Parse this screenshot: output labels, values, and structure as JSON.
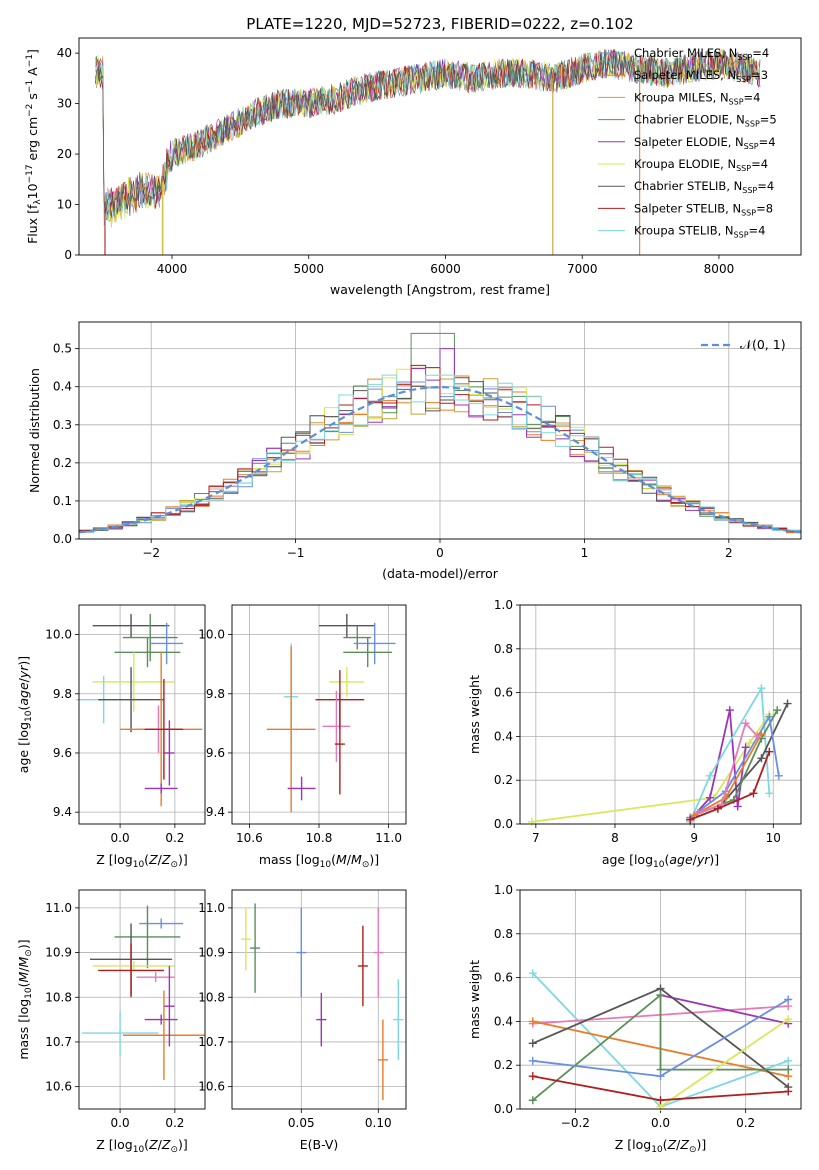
{
  "figure": {
    "title": "PLATE=1220, MJD=52723, FIBERID=0222, z=0.102"
  },
  "colors": {
    "Chabrier MILES": "#6a8fdf",
    "Salpeter MILES": "#e87d2a",
    "Kroupa MILES": "#c8a034",
    "Chabrier ELODIE": "#5a8f5a",
    "Salpeter ELODIE": "#9b35b5",
    "Kroupa ELODIE": "#d8e85a",
    "Chabrier STELIB": "#555555",
    "Salpeter STELIB": "#b01e1e",
    "Kroupa STELIB": "#7dd8e0",
    "pink": "#e87ab8",
    "normal": "#5b8fd8"
  },
  "chart_data": [
    {
      "id": "spectrum",
      "type": "line",
      "xlabel": "wavelength [Angstrom, rest frame]",
      "ylabel": "Flux [fλ10⁻¹⁷ erg cm⁻² s⁻¹ A⁻¹]",
      "xlim": [
        3320,
        8600
      ],
      "ylim": [
        0,
        43
      ],
      "xticks": [
        4000,
        5000,
        6000,
        7000,
        8000
      ],
      "yticks": [
        0,
        10,
        20,
        30,
        40
      ],
      "legend_position": "top-right",
      "legend": [
        "Chabrier MILES, N_SSP=4",
        "Salpeter MILES, N_SSP=3",
        "Kroupa MILES, N_SSP=4",
        "Chabrier ELODIE, N_SSP=5",
        "Salpeter ELODIE, N_SSP=4",
        "Kroupa ELODIE, N_SSP=4",
        "Chabrier STELIB, N_SSP=4",
        "Salpeter STELIB, N_SSP=8",
        "Kroupa STELIB, N_SSP=4"
      ],
      "legend_labels": [
        {
          "base": "Chabrier MILES, N",
          "sub": "SSP",
          "tail": "=4"
        },
        {
          "base": "Salpeter MILES, N",
          "sub": "SSP",
          "tail": "=3"
        },
        {
          "base": "Kroupa MILES, N",
          "sub": "SSP",
          "tail": "=4"
        },
        {
          "base": "Chabrier ELODIE, N",
          "sub": "SSP",
          "tail": "=5"
        },
        {
          "base": "Salpeter ELODIE, N",
          "sub": "SSP",
          "tail": "=4"
        },
        {
          "base": "Kroupa ELODIE, N",
          "sub": "SSP",
          "tail": "=4"
        },
        {
          "base": "Chabrier STELIB, N",
          "sub": "SSP",
          "tail": "=4"
        },
        {
          "base": "Salpeter STELIB, N",
          "sub": "SSP",
          "tail": "=8"
        },
        {
          "base": "Kroupa STELIB, N",
          "sub": "SSP",
          "tail": "=4"
        }
      ],
      "series_colors": [
        "#6a8fdf",
        "#e87d2a",
        "#c8a034",
        "#5a8f5a",
        "#9b35b5",
        "#d8e85a",
        "#555555",
        "#b01e1e",
        "#7dd8e0"
      ],
      "continuum": [
        [
          3500,
          9
        ],
        [
          3600,
          10
        ],
        [
          3700,
          12
        ],
        [
          3800,
          13
        ],
        [
          3900,
          12
        ],
        [
          4000,
          20
        ],
        [
          4200,
          22
        ],
        [
          4400,
          25
        ],
        [
          4600,
          28
        ],
        [
          4800,
          30
        ],
        [
          5000,
          30
        ],
        [
          5200,
          31
        ],
        [
          5400,
          33
        ],
        [
          5600,
          34
        ],
        [
          5800,
          35
        ],
        [
          6000,
          36
        ],
        [
          6200,
          35
        ],
        [
          6400,
          36
        ],
        [
          6600,
          36
        ],
        [
          6800,
          35
        ],
        [
          7000,
          37
        ],
        [
          7200,
          38
        ],
        [
          7400,
          37
        ],
        [
          7600,
          36
        ],
        [
          7800,
          37
        ],
        [
          8000,
          38
        ],
        [
          8200,
          37
        ],
        [
          8300,
          36
        ]
      ],
      "spikes": [
        {
          "x": 3510,
          "color": "#b01e1e",
          "to": 0
        },
        {
          "x": 3930,
          "color": "#c8a034",
          "to": 0
        },
        {
          "x": 3935,
          "color": "#d8e85a",
          "to": 0
        },
        {
          "x": 6785,
          "color": "#c8a034",
          "to": 0
        },
        {
          "x": 7420,
          "color": "#e87d2a",
          "to": 0
        }
      ]
    },
    {
      "id": "residuals",
      "type": "histogram",
      "xlabel": "(data-model)/error",
      "ylabel": "Normed distribution",
      "xlim": [
        -2.5,
        2.5
      ],
      "ylim": [
        0,
        0.57
      ],
      "xticks": [
        -2,
        -1,
        0,
        1,
        2
      ],
      "yticks": [
        0.0,
        0.1,
        0.2,
        0.3,
        0.4,
        0.5
      ],
      "bin_width": 0.1,
      "legend": [
        "N(0, 1)"
      ],
      "legend_position": "top-right",
      "peak_values": [
        0.54,
        0.5,
        0.46,
        0.45,
        0.42
      ]
    },
    {
      "id": "age-vs-Z",
      "type": "errorbar",
      "xlabel": "Z [log10(Z/Z⊙)]",
      "ylabel": "age [log10(age/yr)]",
      "xlim": [
        -0.15,
        0.31
      ],
      "ylim": [
        9.36,
        10.1
      ],
      "xticks": [
        0.0,
        0.2
      ],
      "yticks": [
        9.4,
        9.6,
        9.8,
        10.0
      ],
      "points": [
        {
          "x": 0.04,
          "y": 10.03,
          "xerr": 0.14,
          "yerr": 0.04,
          "color": "#555555"
        },
        {
          "x": 0.11,
          "y": 9.99,
          "xerr": 0.1,
          "yerr": 0.08,
          "color": "#5a8f5a"
        },
        {
          "x": 0.17,
          "y": 9.97,
          "xerr": 0.06,
          "yerr": 0.07,
          "color": "#6a8fdf"
        },
        {
          "x": 0.1,
          "y": 9.94,
          "xerr": 0.12,
          "yerr": 0.05,
          "color": "#5a8f5a"
        },
        {
          "x": 0.05,
          "y": 9.84,
          "xerr": 0.15,
          "yerr": 0.1,
          "color": "#d8e85a"
        },
        {
          "x": -0.06,
          "y": 9.78,
          "xerr": 0.1,
          "yerr": 0.08,
          "color": "#7dd8e0"
        },
        {
          "x": 0.04,
          "y": 9.78,
          "xerr": 0.12,
          "yerr": 0.11,
          "color": "#555555"
        },
        {
          "x": 0.14,
          "y": 9.68,
          "xerr": 0.08,
          "yerr": 0.08,
          "color": "#e87ab8"
        },
        {
          "x": 0.15,
          "y": 9.68,
          "xerr": 0.15,
          "yerr": 0.26,
          "color": "#e87d2a"
        },
        {
          "x": 0.16,
          "y": 9.68,
          "xerr": 0.07,
          "yerr": 0.17,
          "color": "#b01e1e"
        },
        {
          "x": 0.18,
          "y": 9.6,
          "xerr": 0.0,
          "yerr": 0.11,
          "color": "#9b35b5"
        },
        {
          "x": 0.15,
          "y": 9.48,
          "xerr": 0.06,
          "yerr": 0.0,
          "color": "#9b35b5"
        }
      ]
    },
    {
      "id": "age-vs-mass",
      "type": "errorbar",
      "xlabel": "mass [log10(M/M⊙)]",
      "ylabel": "",
      "xlim": [
        10.55,
        11.05
      ],
      "ylim": [
        9.36,
        10.1
      ],
      "xticks": [
        10.6,
        10.8,
        11.0
      ],
      "yticks": [
        9.4,
        9.6,
        9.8,
        10.0
      ],
      "points": [
        {
          "x": 10.88,
          "y": 10.03,
          "xerr": 0.08,
          "yerr": 0.04,
          "color": "#555555"
        },
        {
          "x": 10.91,
          "y": 9.99,
          "xerr": 0.04,
          "yerr": 0.04,
          "color": "#5a8f5a"
        },
        {
          "x": 10.96,
          "y": 9.97,
          "xerr": 0.06,
          "yerr": 0.07,
          "color": "#6a8fdf"
        },
        {
          "x": 10.94,
          "y": 9.94,
          "xerr": 0.07,
          "yerr": 0.05,
          "color": "#5a8f5a"
        },
        {
          "x": 10.88,
          "y": 9.84,
          "xerr": 0.05,
          "yerr": 0.05,
          "color": "#d8e85a"
        },
        {
          "x": 10.72,
          "y": 9.79,
          "xerr": 0.02,
          "yerr": 0.18,
          "color": "#7dd8e0"
        },
        {
          "x": 10.86,
          "y": 9.78,
          "xerr": 0.07,
          "yerr": 0.1,
          "color": "#b01e1e"
        },
        {
          "x": 10.85,
          "y": 9.69,
          "xerr": 0.04,
          "yerr": 0.12,
          "color": "#e87ab8"
        },
        {
          "x": 10.72,
          "y": 9.68,
          "xerr": 0.07,
          "yerr": 0.28,
          "color": "#e87d2a"
        },
        {
          "x": 10.86,
          "y": 9.63,
          "xerr": 0.0,
          "yerr": 0.17,
          "color": "#b01e1e"
        },
        {
          "x": 10.75,
          "y": 9.48,
          "xerr": 0.04,
          "yerr": 0.04,
          "color": "#9b35b5"
        }
      ]
    },
    {
      "id": "weight-vs-age",
      "type": "line",
      "xlabel": "age [log10(age/yr)]",
      "ylabel": "mass weight",
      "xlim": [
        6.8,
        10.35
      ],
      "ylim": [
        0,
        1
      ],
      "xticks": [
        7,
        8,
        9,
        10
      ],
      "yticks": [
        0.0,
        0.2,
        0.4,
        0.6,
        0.8,
        1.0
      ],
      "series": [
        {
          "color": "#d8e85a",
          "points": [
            [
              6.95,
              0.01
            ],
            [
              9.25,
              0.12
            ],
            [
              9.7,
              0.37
            ],
            [
              9.95,
              0.5
            ]
          ]
        },
        {
          "color": "#9b35b5",
          "points": [
            [
              8.95,
              0.02
            ],
            [
              9.2,
              0.12
            ],
            [
              9.45,
              0.52
            ],
            [
              9.55,
              0.08
            ],
            [
              9.65,
              0.35
            ]
          ]
        },
        {
          "color": "#7dd8e0",
          "points": [
            [
              8.95,
              0.01
            ],
            [
              9.2,
              0.22
            ],
            [
              9.85,
              0.62
            ],
            [
              9.95,
              0.14
            ]
          ]
        },
        {
          "color": "#555555",
          "points": [
            [
              8.95,
              0.02
            ],
            [
              9.3,
              0.07
            ],
            [
              9.85,
              0.3
            ],
            [
              10.18,
              0.55
            ]
          ]
        },
        {
          "color": "#5a8f5a",
          "points": [
            [
              9.0,
              0.04
            ],
            [
              9.5,
              0.11
            ],
            [
              9.85,
              0.39
            ],
            [
              10.05,
              0.52
            ]
          ]
        },
        {
          "color": "#6a8fdf",
          "points": [
            [
              8.95,
              0.03
            ],
            [
              9.4,
              0.15
            ],
            [
              9.95,
              0.49
            ],
            [
              10.07,
              0.22
            ]
          ]
        },
        {
          "color": "#e87d2a",
          "points": [
            [
              9.0,
              0.04
            ],
            [
              9.4,
              0.12
            ],
            [
              9.85,
              0.41
            ]
          ]
        },
        {
          "color": "#e87ab8",
          "points": [
            [
              9.05,
              0.05
            ],
            [
              9.35,
              0.09
            ],
            [
              9.65,
              0.46
            ],
            [
              9.8,
              0.4
            ]
          ]
        },
        {
          "color": "#b01e1e",
          "points": [
            [
              8.95,
              0.02
            ],
            [
              9.3,
              0.07
            ],
            [
              9.75,
              0.14
            ],
            [
              9.95,
              0.33
            ]
          ]
        }
      ]
    },
    {
      "id": "mass-vs-Z",
      "type": "errorbar",
      "xlabel": "Z [log10(Z/Z⊙)]",
      "ylabel": "mass [log10(M/M⊙)]",
      "xlim": [
        -0.15,
        0.31
      ],
      "ylim": [
        10.55,
        11.04
      ],
      "xticks": [
        0.0,
        0.2
      ],
      "yticks": [
        10.6,
        10.7,
        10.8,
        10.9,
        11.0
      ],
      "points": [
        {
          "x": 0.15,
          "y": 10.965,
          "xerr": 0.08,
          "yerr": 0.0,
          "color": "#6a8fdf"
        },
        {
          "x": 0.1,
          "y": 10.935,
          "xerr": 0.12,
          "yerr": 0.07,
          "color": "#5a8f5a"
        },
        {
          "x": 0.04,
          "y": 10.885,
          "xerr": 0.15,
          "yerr": 0.08,
          "color": "#555555"
        },
        {
          "x": 0.05,
          "y": 10.87,
          "xerr": 0.15,
          "yerr": 0.0,
          "color": "#d8e85a"
        },
        {
          "x": 0.13,
          "y": 10.845,
          "xerr": 0.07,
          "yerr": 0.0,
          "color": "#e87ab8"
        },
        {
          "x": 0.04,
          "y": 10.86,
          "xerr": 0.12,
          "yerr": 0.06,
          "color": "#b01e1e"
        },
        {
          "x": 0.15,
          "y": 10.75,
          "xerr": 0.06,
          "yerr": 0.0,
          "color": "#9b35b5"
        },
        {
          "x": 0.0,
          "y": 10.72,
          "xerr": 0.14,
          "yerr": 0.05,
          "color": "#7dd8e0"
        },
        {
          "x": 0.16,
          "y": 10.715,
          "xerr": 0.15,
          "yerr": 0.1,
          "color": "#e87d2a"
        },
        {
          "x": 0.18,
          "y": 10.78,
          "xerr": 0.0,
          "yerr": 0.09,
          "color": "#9b35b5"
        }
      ]
    },
    {
      "id": "mass-vs-ebv",
      "type": "errorbar",
      "xlabel": "E(B-V)",
      "ylabel": "",
      "xlim": [
        0.005,
        0.118
      ],
      "ylim": [
        10.55,
        11.04
      ],
      "xticks": [
        0.05,
        0.1
      ],
      "yticks": [
        10.6,
        10.7,
        10.8,
        10.9,
        11.0
      ],
      "points": [
        {
          "x": 0.014,
          "y": 10.93,
          "xerr": 0.0,
          "yerr": 0.07,
          "color": "#d8e85a"
        },
        {
          "x": 0.02,
          "y": 10.91,
          "xerr": 0.0,
          "yerr": 0.1,
          "color": "#5a8f5a"
        },
        {
          "x": 0.05,
          "y": 10.9,
          "xerr": 0.0,
          "yerr": 0.1,
          "color": "#6a8fdf"
        },
        {
          "x": 0.063,
          "y": 10.75,
          "xerr": 0.0,
          "yerr": 0.06,
          "color": "#9b35b5"
        },
        {
          "x": 0.09,
          "y": 10.87,
          "xerr": 0.0,
          "yerr": 0.09,
          "color": "#b01e1e"
        },
        {
          "x": 0.1,
          "y": 10.9,
          "xerr": 0.0,
          "yerr": 0.1,
          "color": "#e87ab8"
        },
        {
          "x": 0.103,
          "y": 10.66,
          "xerr": 0.0,
          "yerr": 0.09,
          "color": "#e87d2a"
        },
        {
          "x": 0.113,
          "y": 10.75,
          "xerr": 0.0,
          "yerr": 0.09,
          "color": "#7dd8e0"
        }
      ]
    },
    {
      "id": "weight-vs-Z",
      "type": "line",
      "xlabel": "Z [log10(Z/Z⊙)]",
      "ylabel": "mass weight",
      "xlim": [
        -0.33,
        0.33
      ],
      "ylim": [
        0,
        1
      ],
      "xticks": [
        -0.2,
        0.0,
        0.2
      ],
      "yticks": [
        0.0,
        0.2,
        0.4,
        0.6,
        0.8,
        1.0
      ],
      "series": [
        {
          "color": "#7dd8e0",
          "points": [
            [
              -0.3,
              0.62
            ],
            [
              0.0,
              0.01
            ],
            [
              0.3,
              0.22
            ]
          ]
        },
        {
          "color": "#e87ab8",
          "points": [
            [
              -0.3,
              0.39
            ],
            [
              0.3,
              0.47
            ]
          ]
        },
        {
          "color": "#e87d2a",
          "points": [
            [
              -0.3,
              0.4
            ],
            [
              0.3,
              0.15
            ]
          ]
        },
        {
          "color": "#9b35b5",
          "points": [
            [
              0.0,
              0.52
            ],
            [
              0.3,
              0.39
            ]
          ]
        },
        {
          "color": "#555555",
          "points": [
            [
              -0.3,
              0.3
            ],
            [
              0.0,
              0.55
            ],
            [
              0.3,
              0.1
            ]
          ]
        },
        {
          "color": "#5a8f5a",
          "points": [
            [
              -0.3,
              0.04
            ],
            [
              0.0,
              0.52
            ],
            [
              0.0,
              0.18
            ],
            [
              0.3,
              0.18
            ]
          ]
        },
        {
          "color": "#6a8fdf",
          "points": [
            [
              -0.3,
              0.22
            ],
            [
              0.0,
              0.15
            ],
            [
              0.3,
              0.5
            ]
          ]
        },
        {
          "color": "#d8e85a",
          "points": [
            [
              0.0,
              0.01
            ],
            [
              0.3,
              0.41
            ]
          ]
        },
        {
          "color": "#b01e1e",
          "points": [
            [
              -0.3,
              0.15
            ],
            [
              0.0,
              0.04
            ],
            [
              0.3,
              0.08
            ]
          ]
        }
      ]
    }
  ]
}
